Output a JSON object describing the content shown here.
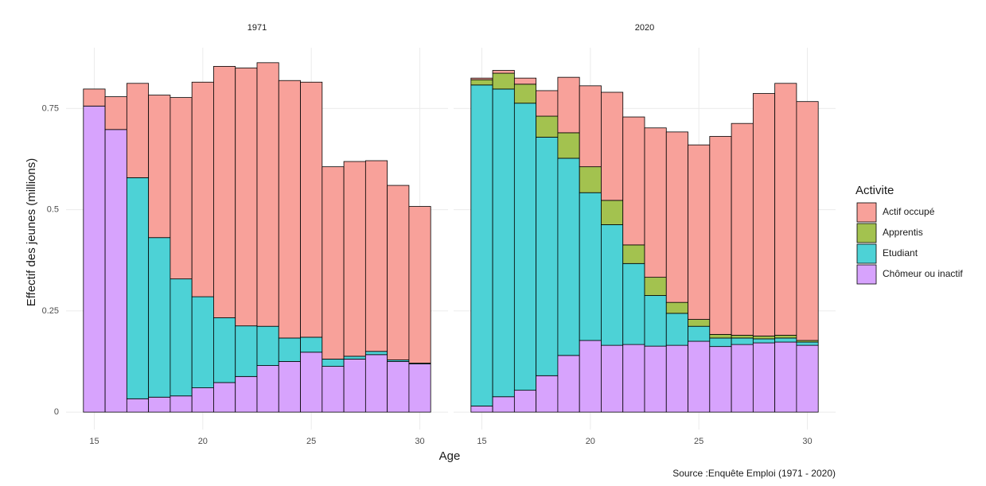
{
  "chart_data": {
    "type": "bar",
    "stacked": true,
    "grid": true,
    "facets": [
      "1971",
      "2020"
    ],
    "x": [
      15,
      16,
      17,
      18,
      19,
      20,
      21,
      22,
      23,
      24,
      25,
      26,
      27,
      28,
      29,
      30
    ],
    "series": [
      {
        "name": "Actif occupé",
        "color": "#f8a19a",
        "values": [
          [
            0.042,
            0.081,
            0.233,
            0.352,
            0.448,
            0.53,
            0.621,
            0.637,
            0.651,
            0.636,
            0.63,
            0.475,
            0.481,
            0.471,
            0.431,
            0.387
          ],
          [
            0.004,
            0.007,
            0.015,
            0.063,
            0.137,
            0.2,
            0.267,
            0.316,
            0.369,
            0.421,
            0.431,
            0.489,
            0.523,
            0.599,
            0.622,
            0.59
          ]
        ]
      },
      {
        "name": "Apprentis",
        "color": "#a3c24f",
        "values": [
          [
            0,
            0,
            0,
            0,
            0,
            0,
            0,
            0,
            0,
            0,
            0,
            0,
            0,
            0,
            0,
            0
          ],
          [
            0.013,
            0.039,
            0.047,
            0.052,
            0.063,
            0.064,
            0.06,
            0.046,
            0.045,
            0.027,
            0.017,
            0.009,
            0.007,
            0.007,
            0.007,
            0.004
          ]
        ]
      },
      {
        "name": "Etudiant",
        "color": "#4dd2d6",
        "values": [
          [
            0,
            0,
            0.546,
            0.394,
            0.289,
            0.225,
            0.16,
            0.125,
            0.097,
            0.058,
            0.037,
            0.018,
            0.007,
            0.008,
            0.004,
            0.002
          ],
          [
            0.793,
            0.76,
            0.709,
            0.589,
            0.487,
            0.365,
            0.298,
            0.2,
            0.125,
            0.079,
            0.037,
            0.021,
            0.016,
            0.01,
            0.01,
            0.008
          ]
        ]
      },
      {
        "name": "Chômeur ou inactif",
        "color": "#d7a3fd",
        "values": [
          [
            0.756,
            0.698,
            0.033,
            0.037,
            0.04,
            0.06,
            0.073,
            0.088,
            0.115,
            0.125,
            0.148,
            0.113,
            0.131,
            0.142,
            0.125,
            0.119
          ],
          [
            0.015,
            0.038,
            0.054,
            0.09,
            0.14,
            0.177,
            0.165,
            0.167,
            0.163,
            0.165,
            0.175,
            0.162,
            0.167,
            0.171,
            0.173,
            0.165
          ]
        ]
      }
    ],
    "xlim": [
      13.7,
      31.3
    ],
    "xticks": [
      15,
      20,
      25,
      30
    ],
    "ylim": [
      -0.043,
      0.9
    ],
    "yticks": [
      0,
      0.25,
      0.5,
      0.75
    ],
    "x_label": "Age",
    "y_label": "Effectif des jeunes (millions)",
    "legend_title": "Activite",
    "caption": "Source :Enquête Emploi (1971 - 2020)"
  }
}
